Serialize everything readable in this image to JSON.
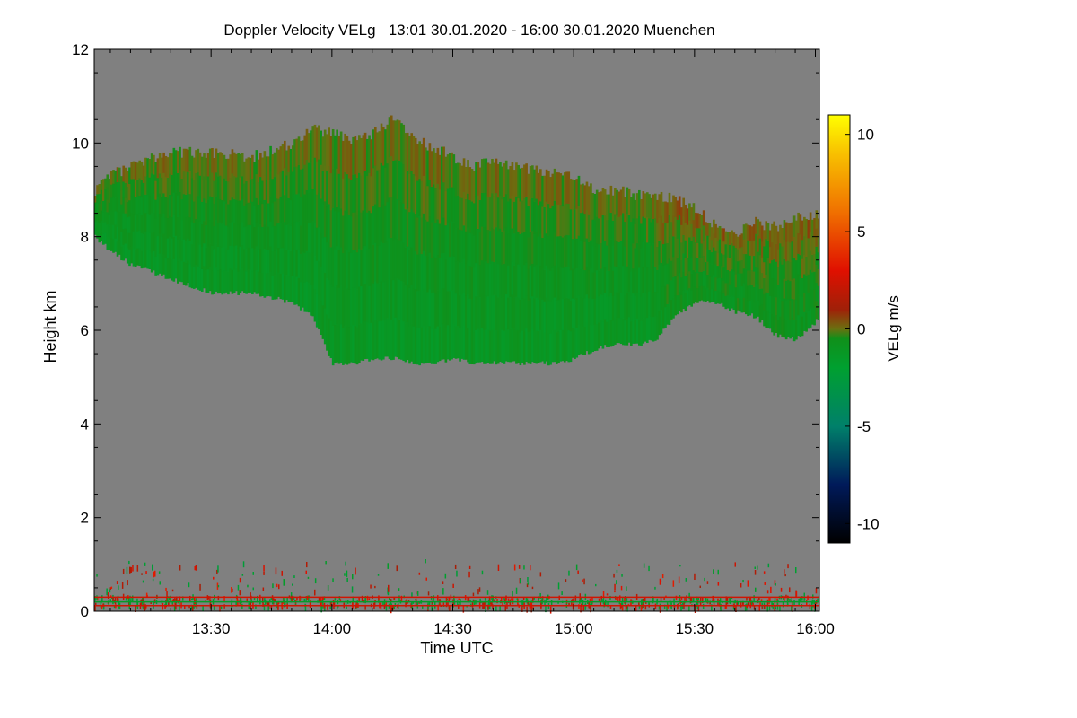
{
  "chart_data": {
    "type": "heatmap",
    "title": "Doppler Velocity VELg   13:01 30.01.2020 - 16:00 30.01.2020 Muenchen",
    "xlabel": "Time UTC",
    "ylabel": "Height km",
    "x_ticks": [
      "13:30",
      "14:00",
      "14:30",
      "15:00",
      "15:30",
      "16:00"
    ],
    "x_tick_minutes": [
      30,
      60,
      90,
      120,
      150,
      180
    ],
    "x_range_minutes": [
      1,
      181
    ],
    "xlim": [
      "13:01",
      "16:00"
    ],
    "y_ticks": [
      "0",
      "2",
      "4",
      "6",
      "8",
      "10",
      "12"
    ],
    "ylim": [
      0,
      12
    ],
    "background_color": "#808080",
    "colorbar": {
      "label": "VELg m/s",
      "range": [
        -11,
        11
      ],
      "ticks": [
        "-10",
        "-5",
        "0",
        "5",
        "10"
      ],
      "tick_values": [
        -10,
        -5,
        0,
        5,
        10
      ],
      "stops": [
        {
          "v": -11,
          "c": "#000000"
        },
        {
          "v": -8,
          "c": "#001a5a"
        },
        {
          "v": -5,
          "c": "#00806a"
        },
        {
          "v": -2,
          "c": "#00a030"
        },
        {
          "v": -0.5,
          "c": "#10901a"
        },
        {
          "v": 0,
          "c": "#6a7010"
        },
        {
          "v": 1,
          "c": "#a02008"
        },
        {
          "v": 3,
          "c": "#e01000"
        },
        {
          "v": 6,
          "c": "#f07000"
        },
        {
          "v": 9,
          "c": "#f8c000"
        },
        {
          "v": 11,
          "c": "#ffff00"
        }
      ]
    },
    "cloud_layer": {
      "velocity_range": [
        -2,
        0.5
      ],
      "x_minutes": [
        1,
        5,
        10,
        20,
        30,
        40,
        50,
        55,
        60,
        65,
        70,
        75,
        80,
        85,
        90,
        95,
        100,
        105,
        110,
        115,
        120,
        125,
        130,
        135,
        140,
        145,
        150,
        155,
        160,
        165,
        170,
        175,
        180
      ],
      "top_km": [
        9.0,
        9.3,
        9.5,
        9.8,
        9.8,
        9.7,
        10.0,
        10.3,
        10.2,
        10.1,
        10.2,
        10.5,
        10.1,
        9.9,
        9.7,
        9.5,
        9.6,
        9.5,
        9.4,
        9.4,
        9.3,
        9.0,
        9.0,
        8.9,
        8.9,
        8.8,
        8.6,
        8.2,
        8.1,
        8.3,
        8.2,
        8.4,
        8.5
      ],
      "base_km": [
        8.0,
        7.7,
        7.4,
        7.1,
        6.8,
        6.8,
        6.6,
        6.3,
        5.3,
        5.3,
        5.4,
        5.4,
        5.3,
        5.3,
        5.4,
        5.3,
        5.3,
        5.3,
        5.3,
        5.3,
        5.4,
        5.6,
        5.7,
        5.7,
        5.8,
        6.3,
        6.6,
        6.6,
        6.4,
        6.3,
        5.9,
        5.8,
        6.2
      ]
    },
    "boundary_layer": {
      "height_km": [
        0.1,
        0.35
      ],
      "line_heights_km": [
        0.12,
        0.2,
        0.3
      ]
    }
  }
}
